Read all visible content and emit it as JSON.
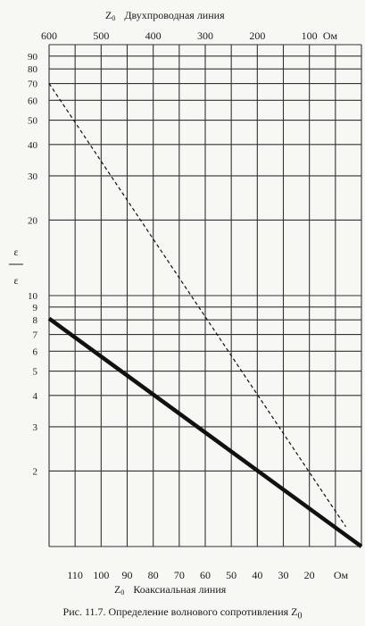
{
  "chart_data": {
    "type": "line",
    "top_axis": {
      "prefix": "Z",
      "subscript": "0",
      "title": "Двухпроводная линия",
      "unit": "Ом",
      "ticks": [
        "600",
        "500",
        "400",
        "300",
        "200",
        "100"
      ],
      "range": [
        600,
        0
      ]
    },
    "bottom_axis": {
      "prefix": "Z",
      "subscript": "0",
      "title": "Коаксиальная линия",
      "unit": "Ом",
      "ticks": [
        "110",
        "100",
        "90",
        "80",
        "70",
        "60",
        "50",
        "40",
        "30",
        "20"
      ],
      "range": [
        120,
        0
      ]
    },
    "y_axis": {
      "label_top": "ε",
      "label_bottom": "ε",
      "scale": "log",
      "ticks": [
        "90",
        "80",
        "70",
        "60",
        "50",
        "40",
        "30",
        "20",
        "10",
        "9",
        "8",
        "7",
        "6",
        "5",
        "4",
        "3",
        "2"
      ],
      "range": [
        1,
        100
      ]
    },
    "grid": true,
    "series": [
      {
        "style": "solid-thick",
        "axis": "bottom",
        "points": [
          [
            120,
            8.1
          ],
          [
            0,
            1.0
          ]
        ]
      },
      {
        "style": "dashed",
        "axis": "top",
        "points": [
          [
            600,
            70
          ],
          [
            30,
            1.2
          ]
        ]
      }
    ]
  },
  "caption": {
    "text": "Рис. 11.7. Определение волнового сопротивления Z",
    "subscript": "0"
  }
}
